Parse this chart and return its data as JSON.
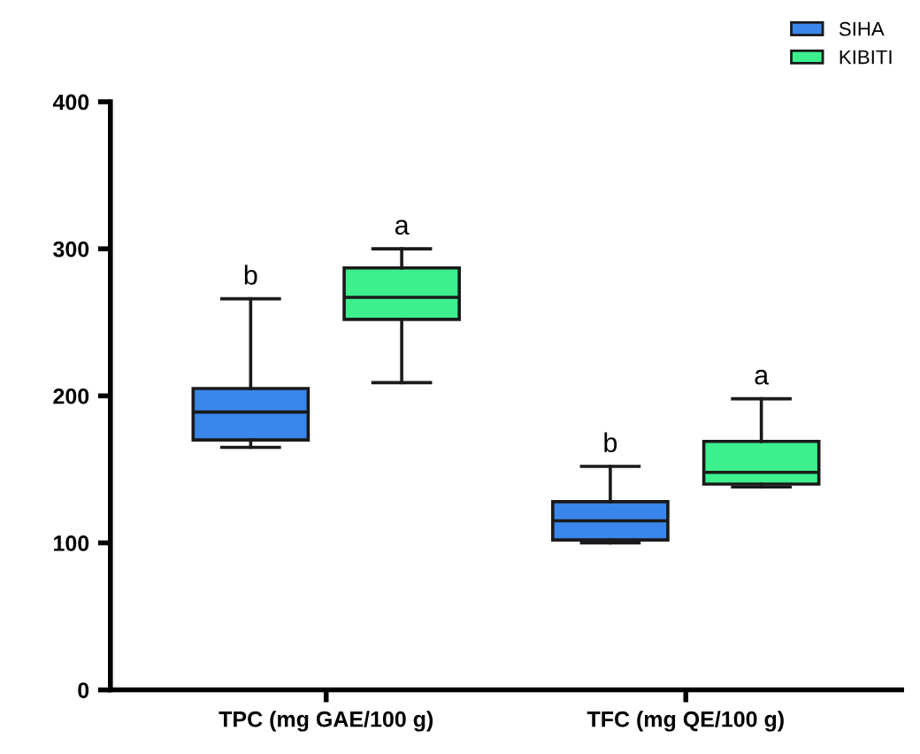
{
  "chart_data": {
    "type": "box",
    "categories": [
      "TPC (mg GAE/100 g)",
      "TFC (mg QE/100 g)"
    ],
    "series": [
      {
        "name": "SIHA",
        "color": "#3a86ea",
        "boxes": [
          {
            "low": 165,
            "q1": 170,
            "median": 189,
            "q3": 205,
            "high": 266
          },
          {
            "low": 100,
            "q1": 102,
            "median": 115,
            "q3": 128,
            "high": 152
          }
        ]
      },
      {
        "name": "KIBITI",
        "color": "#3cf08e",
        "boxes": [
          {
            "low": 209,
            "q1": 252,
            "median": 267,
            "q3": 287,
            "high": 300
          },
          {
            "low": 138,
            "q1": 140,
            "median": 148,
            "q3": 169,
            "high": 198
          }
        ]
      }
    ],
    "ylim": [
      0,
      400
    ],
    "yticks": [
      0,
      100,
      200,
      300,
      400
    ],
    "grid": false,
    "legend": "top right",
    "annotations": [
      "b",
      "a",
      "b",
      "a"
    ]
  }
}
